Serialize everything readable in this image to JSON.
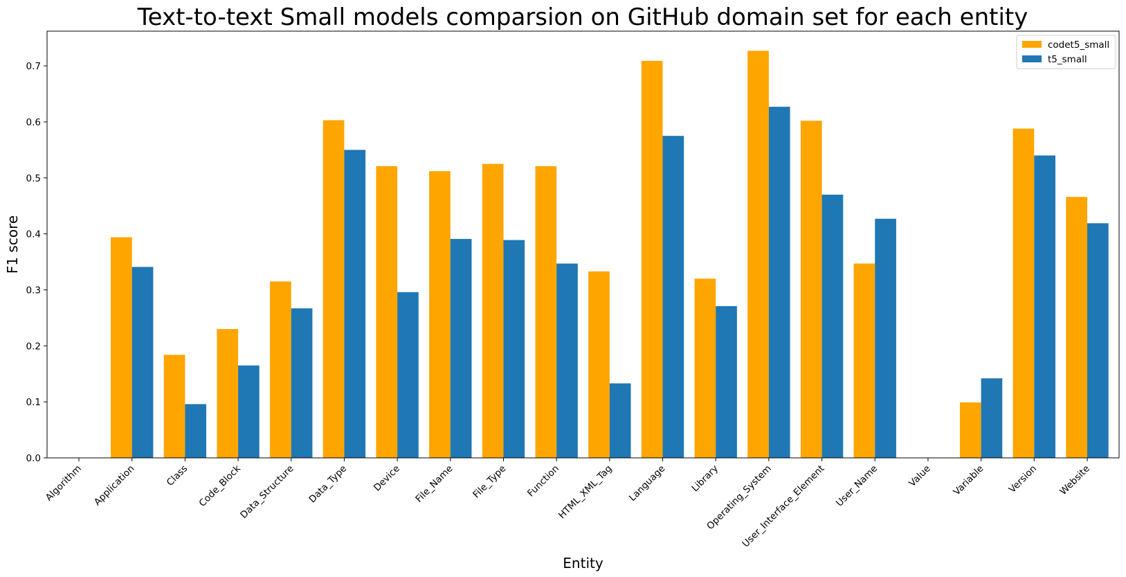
{
  "chart_data": {
    "type": "bar",
    "title": "Text-to-text Small models comparsion on GitHub domain set for each entity",
    "xlabel": "Entity",
    "ylabel": "F1 score",
    "ylim": [
      0,
      0.762
    ],
    "yticks": [
      "0.0",
      "0.1",
      "0.2",
      "0.3",
      "0.4",
      "0.5",
      "0.6",
      "0.7"
    ],
    "grid": false,
    "legend_position": "top-right",
    "categories": [
      "Algorithm",
      "Application",
      "Class",
      "Code_Block",
      "Data_Structure",
      "Data_Type",
      "Device",
      "File_Name",
      "File_Type",
      "Function",
      "HTML_XML_Tag",
      "Language",
      "Library",
      "Operating_System",
      "User_Interface_Element",
      "User_Name",
      "Value",
      "Variable",
      "Version",
      "Website"
    ],
    "series": [
      {
        "name": "codet5_small",
        "color": "#ffa500",
        "values": [
          0.0,
          0.394,
          0.184,
          0.23,
          0.315,
          0.603,
          0.521,
          0.512,
          0.525,
          0.521,
          0.333,
          0.709,
          0.32,
          0.727,
          0.602,
          0.347,
          0.0,
          0.099,
          0.588,
          0.466
        ]
      },
      {
        "name": "t5_small",
        "color": "#1f77b4",
        "values": [
          0.0,
          0.341,
          0.096,
          0.165,
          0.267,
          0.55,
          0.296,
          0.391,
          0.389,
          0.347,
          0.133,
          0.575,
          0.271,
          0.627,
          0.47,
          0.427,
          0.0,
          0.142,
          0.54,
          0.419
        ]
      }
    ]
  }
}
